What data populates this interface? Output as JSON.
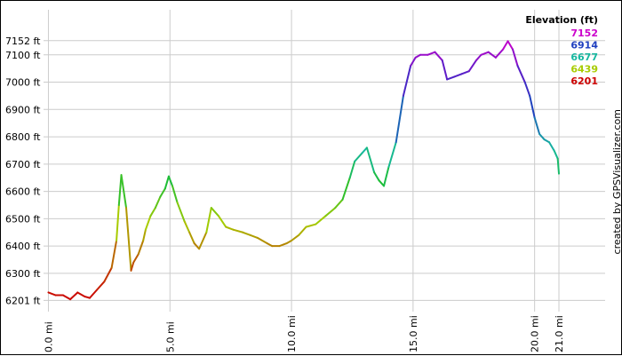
{
  "chart_data": {
    "type": "line",
    "title": "",
    "xlabel": "",
    "ylabel": "",
    "xlim": [
      -0.2,
      22.9
    ],
    "ylim": [
      6160,
      7265
    ],
    "grid": true,
    "y_unit": "ft",
    "x_unit": "mi",
    "y_ticks": [
      {
        "value": 6201,
        "label": "6201 ft"
      },
      {
        "value": 6300,
        "label": "6300 ft"
      },
      {
        "value": 6400,
        "label": "6400 ft"
      },
      {
        "value": 6500,
        "label": "6500 ft"
      },
      {
        "value": 6600,
        "label": "6600 ft"
      },
      {
        "value": 6700,
        "label": "6700 ft"
      },
      {
        "value": 6800,
        "label": "6800 ft"
      },
      {
        "value": 6900,
        "label": "6900 ft"
      },
      {
        "value": 7000,
        "label": "7000 ft"
      },
      {
        "value": 7100,
        "label": "7100 ft"
      },
      {
        "value": 7152,
        "label": "7152 ft"
      }
    ],
    "x_ticks": [
      {
        "value": 0,
        "label": "0.0 mi"
      },
      {
        "value": 5,
        "label": "5.0 mi"
      },
      {
        "value": 10,
        "label": "10.0 mi"
      },
      {
        "value": 15,
        "label": "15.0 mi"
      },
      {
        "value": 20,
        "label": "20.0 mi"
      },
      {
        "value": 21,
        "label": "21.0 mi"
      }
    ],
    "legend": {
      "title": "Elevation (ft)",
      "position": "top-right",
      "entries": [
        {
          "label": "7152",
          "color": "#cc00cc"
        },
        {
          "label": "6914",
          "color": "#1f3fbf"
        },
        {
          "label": "6677",
          "color": "#16b8a0"
        },
        {
          "label": "6439",
          "color": "#a8cc00"
        },
        {
          "label": "6201",
          "color": "#cc0000"
        }
      ]
    },
    "color_scale": {
      "min": 6201,
      "max": 7152
    },
    "series": [
      {
        "x": [
          0.0,
          0.3,
          0.6,
          0.9,
          1.2,
          1.5,
          1.7,
          2.0,
          2.3,
          2.6,
          2.8,
          2.9,
          3.0,
          3.2,
          3.4,
          3.5,
          3.7,
          3.9,
          4.0,
          4.2,
          4.4,
          4.6,
          4.8,
          4.95,
          5.1,
          5.3,
          5.6,
          5.8,
          6.0,
          6.2,
          6.5,
          6.7,
          7.0,
          7.3,
          7.6,
          8.0,
          8.3,
          8.6,
          9.0,
          9.2,
          9.5,
          9.8,
          10.0,
          10.3,
          10.6,
          11.0,
          11.4,
          11.8,
          12.1,
          12.4,
          12.6,
          12.9,
          13.1,
          13.4,
          13.6,
          13.8,
          14.0,
          14.3,
          14.6,
          14.9,
          15.1,
          15.3,
          15.6,
          15.9,
          16.2,
          16.4,
          16.7,
          17.0,
          17.3,
          17.6,
          17.8,
          18.1,
          18.4,
          18.7,
          18.9,
          19.1,
          19.3,
          19.6,
          19.8,
          20.0,
          20.2,
          20.4,
          20.6,
          20.8,
          20.95,
          21.0
        ],
        "y": [
          6230,
          6220,
          6220,
          6205,
          6230,
          6215,
          6210,
          6240,
          6270,
          6320,
          6420,
          6550,
          6660,
          6540,
          6310,
          6340,
          6370,
          6420,
          6460,
          6510,
          6540,
          6580,
          6610,
          6655,
          6620,
          6560,
          6490,
          6450,
          6410,
          6390,
          6450,
          6540,
          6510,
          6470,
          6460,
          6450,
          6440,
          6430,
          6410,
          6400,
          6400,
          6410,
          6420,
          6440,
          6470,
          6480,
          6510,
          6540,
          6570,
          6650,
          6710,
          6740,
          6760,
          6670,
          6640,
          6620,
          6690,
          6780,
          6950,
          7060,
          7090,
          7100,
          7100,
          7110,
          7080,
          7010,
          7020,
          7030,
          7040,
          7080,
          7100,
          7110,
          7090,
          7120,
          7150,
          7120,
          7060,
          7000,
          6950,
          6870,
          6810,
          6790,
          6780,
          6750,
          6720,
          6665
        ]
      }
    ]
  },
  "credit_text": "created by GPSVisualizer.com"
}
